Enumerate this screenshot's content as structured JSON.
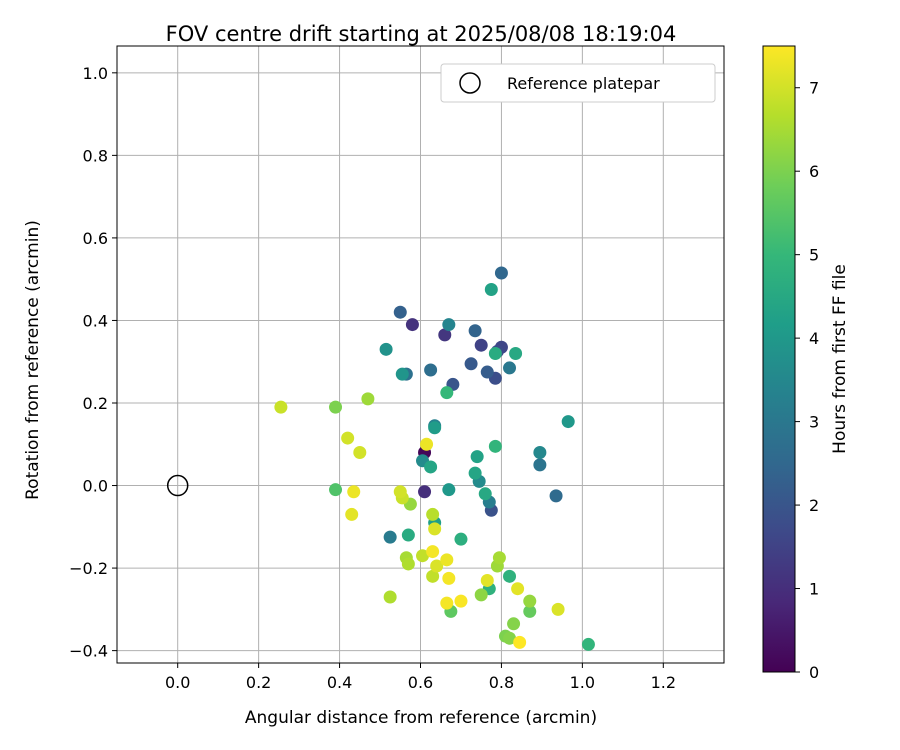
{
  "chart_data": {
    "type": "scatter",
    "title": "FOV centre drift starting at 2025/08/08 18:19:04",
    "xlabel": "Angular distance from reference (arcmin)",
    "ylabel": "Rotation from reference (arcmin)",
    "xlim": [
      -0.15,
      1.35
    ],
    "ylim": [
      -0.43,
      1.065
    ],
    "xticks": [
      "0.0",
      "0.2",
      "0.4",
      "0.6",
      "0.8",
      "1.0",
      "1.2"
    ],
    "yticks": [
      "−0.4",
      "−0.2",
      "0.0",
      "0.2",
      "0.4",
      "0.6",
      "0.8",
      "1.0"
    ],
    "xtick_values": [
      0.0,
      0.2,
      0.4,
      0.6,
      0.8,
      1.0,
      1.2
    ],
    "ytick_values": [
      -0.4,
      -0.2,
      0.0,
      0.2,
      0.4,
      0.6,
      0.8,
      1.0
    ],
    "grid": true,
    "legend": {
      "position": "top-right",
      "entries": [
        "Reference platepar"
      ]
    },
    "reference_point": {
      "x": 0.0,
      "y": 0.0
    },
    "colorbar": {
      "label": "Hours from first FF file",
      "range": [
        0,
        7.5
      ],
      "ticks": [
        "0",
        "1",
        "2",
        "3",
        "4",
        "5",
        "6",
        "7"
      ],
      "tick_values": [
        0,
        1,
        2,
        3,
        4,
        5,
        6,
        7
      ],
      "colormap": "viridis",
      "stops": [
        "#440154",
        "#482878",
        "#3e4989",
        "#31688e",
        "#26828e",
        "#1f9e89",
        "#35b779",
        "#6ece58",
        "#b5de2b",
        "#fde725"
      ]
    },
    "points": [
      {
        "x": 0.61,
        "y": 0.08,
        "t": 0.1
      },
      {
        "x": 0.61,
        "y": -0.015,
        "t": 1.0
      },
      {
        "x": 0.58,
        "y": 0.39,
        "t": 1.1
      },
      {
        "x": 0.66,
        "y": 0.365,
        "t": 1.2
      },
      {
        "x": 0.75,
        "y": 0.34,
        "t": 1.5
      },
      {
        "x": 0.8,
        "y": 0.335,
        "t": 1.6
      },
      {
        "x": 0.79,
        "y": 0.325,
        "t": 1.7
      },
      {
        "x": 0.785,
        "y": 0.26,
        "t": 1.8
      },
      {
        "x": 0.775,
        "y": -0.06,
        "t": 1.9
      },
      {
        "x": 0.68,
        "y": 0.245,
        "t": 2.0
      },
      {
        "x": 0.725,
        "y": 0.295,
        "t": 2.1
      },
      {
        "x": 0.765,
        "y": 0.275,
        "t": 2.2
      },
      {
        "x": 0.55,
        "y": 0.42,
        "t": 2.3
      },
      {
        "x": 0.735,
        "y": 0.375,
        "t": 2.4
      },
      {
        "x": 0.8,
        "y": 0.515,
        "t": 2.5
      },
      {
        "x": 0.935,
        "y": -0.025,
        "t": 2.6
      },
      {
        "x": 0.625,
        "y": 0.28,
        "t": 2.7
      },
      {
        "x": 0.565,
        "y": 0.27,
        "t": 2.8
      },
      {
        "x": 0.895,
        "y": 0.05,
        "t": 2.9
      },
      {
        "x": 0.82,
        "y": 0.285,
        "t": 3.0
      },
      {
        "x": 0.525,
        "y": -0.125,
        "t": 3.1
      },
      {
        "x": 0.77,
        "y": -0.04,
        "t": 3.2
      },
      {
        "x": 0.635,
        "y": 0.145,
        "t": 3.3
      },
      {
        "x": 0.67,
        "y": 0.39,
        "t": 3.4
      },
      {
        "x": 0.895,
        "y": 0.08,
        "t": 3.5
      },
      {
        "x": 0.745,
        "y": 0.01,
        "t": 3.6
      },
      {
        "x": 0.605,
        "y": 0.06,
        "t": 3.6
      },
      {
        "x": 0.515,
        "y": 0.33,
        "t": 3.8
      },
      {
        "x": 0.555,
        "y": 0.27,
        "t": 3.9
      },
      {
        "x": 0.965,
        "y": 0.155,
        "t": 4.0
      },
      {
        "x": 0.67,
        "y": -0.01,
        "t": 4.0
      },
      {
        "x": 0.635,
        "y": 0.14,
        "t": 4.1
      },
      {
        "x": 0.635,
        "y": -0.09,
        "t": 4.2
      },
      {
        "x": 0.775,
        "y": 0.475,
        "t": 4.3
      },
      {
        "x": 0.74,
        "y": 0.07,
        "t": 4.3
      },
      {
        "x": 0.735,
        "y": 0.03,
        "t": 4.4
      },
      {
        "x": 0.625,
        "y": 0.045,
        "t": 4.4
      },
      {
        "x": 0.76,
        "y": -0.02,
        "t": 4.5
      },
      {
        "x": 0.835,
        "y": 0.32,
        "t": 4.5
      },
      {
        "x": 0.785,
        "y": 0.32,
        "t": 4.6
      },
      {
        "x": 0.57,
        "y": -0.12,
        "t": 4.6
      },
      {
        "x": 0.7,
        "y": -0.13,
        "t": 4.7
      },
      {
        "x": 0.77,
        "y": -0.25,
        "t": 4.8
      },
      {
        "x": 0.82,
        "y": -0.22,
        "t": 4.8
      },
      {
        "x": 0.785,
        "y": 0.095,
        "t": 4.9
      },
      {
        "x": 1.015,
        "y": -0.385,
        "t": 4.9
      },
      {
        "x": 0.665,
        "y": 0.225,
        "t": 5.0
      },
      {
        "x": 0.39,
        "y": -0.01,
        "t": 5.4
      },
      {
        "x": 0.675,
        "y": -0.305,
        "t": 5.6
      },
      {
        "x": 0.87,
        "y": -0.305,
        "t": 5.7
      },
      {
        "x": 0.39,
        "y": 0.19,
        "t": 6.0
      },
      {
        "x": 0.81,
        "y": -0.365,
        "t": 6.0
      },
      {
        "x": 0.83,
        "y": -0.335,
        "t": 6.1
      },
      {
        "x": 0.82,
        "y": -0.37,
        "t": 6.1
      },
      {
        "x": 0.75,
        "y": -0.265,
        "t": 6.2
      },
      {
        "x": 0.87,
        "y": -0.28,
        "t": 6.3
      },
      {
        "x": 0.575,
        "y": -0.045,
        "t": 6.3
      },
      {
        "x": 0.47,
        "y": 0.21,
        "t": 6.4
      },
      {
        "x": 0.79,
        "y": -0.195,
        "t": 6.4
      },
      {
        "x": 0.795,
        "y": -0.175,
        "t": 6.5
      },
      {
        "x": 0.565,
        "y": -0.175,
        "t": 6.5
      },
      {
        "x": 0.525,
        "y": -0.27,
        "t": 6.6
      },
      {
        "x": 0.57,
        "y": -0.19,
        "t": 6.6
      },
      {
        "x": 0.63,
        "y": -0.07,
        "t": 6.7
      },
      {
        "x": 0.605,
        "y": -0.17,
        "t": 6.8
      },
      {
        "x": 0.63,
        "y": -0.22,
        "t": 6.8
      },
      {
        "x": 0.555,
        "y": -0.03,
        "t": 6.9
      },
      {
        "x": 0.255,
        "y": 0.19,
        "t": 6.9
      },
      {
        "x": 0.42,
        "y": 0.115,
        "t": 7.0
      },
      {
        "x": 0.45,
        "y": 0.08,
        "t": 7.0
      },
      {
        "x": 0.55,
        "y": -0.015,
        "t": 7.0
      },
      {
        "x": 0.64,
        "y": -0.195,
        "t": 7.1
      },
      {
        "x": 0.635,
        "y": -0.105,
        "t": 7.1
      },
      {
        "x": 0.94,
        "y": -0.3,
        "t": 7.1
      },
      {
        "x": 0.84,
        "y": -0.25,
        "t": 7.2
      },
      {
        "x": 0.765,
        "y": -0.23,
        "t": 7.2
      },
      {
        "x": 0.43,
        "y": -0.07,
        "t": 7.2
      },
      {
        "x": 0.615,
        "y": 0.1,
        "t": 7.3
      },
      {
        "x": 0.435,
        "y": -0.015,
        "t": 7.3
      },
      {
        "x": 0.665,
        "y": -0.18,
        "t": 7.3
      },
      {
        "x": 0.67,
        "y": -0.225,
        "t": 7.4
      },
      {
        "x": 0.63,
        "y": -0.16,
        "t": 7.4
      },
      {
        "x": 0.665,
        "y": -0.285,
        "t": 7.4
      },
      {
        "x": 0.7,
        "y": -0.28,
        "t": 7.45
      },
      {
        "x": 0.845,
        "y": -0.38,
        "t": 7.5
      }
    ]
  }
}
